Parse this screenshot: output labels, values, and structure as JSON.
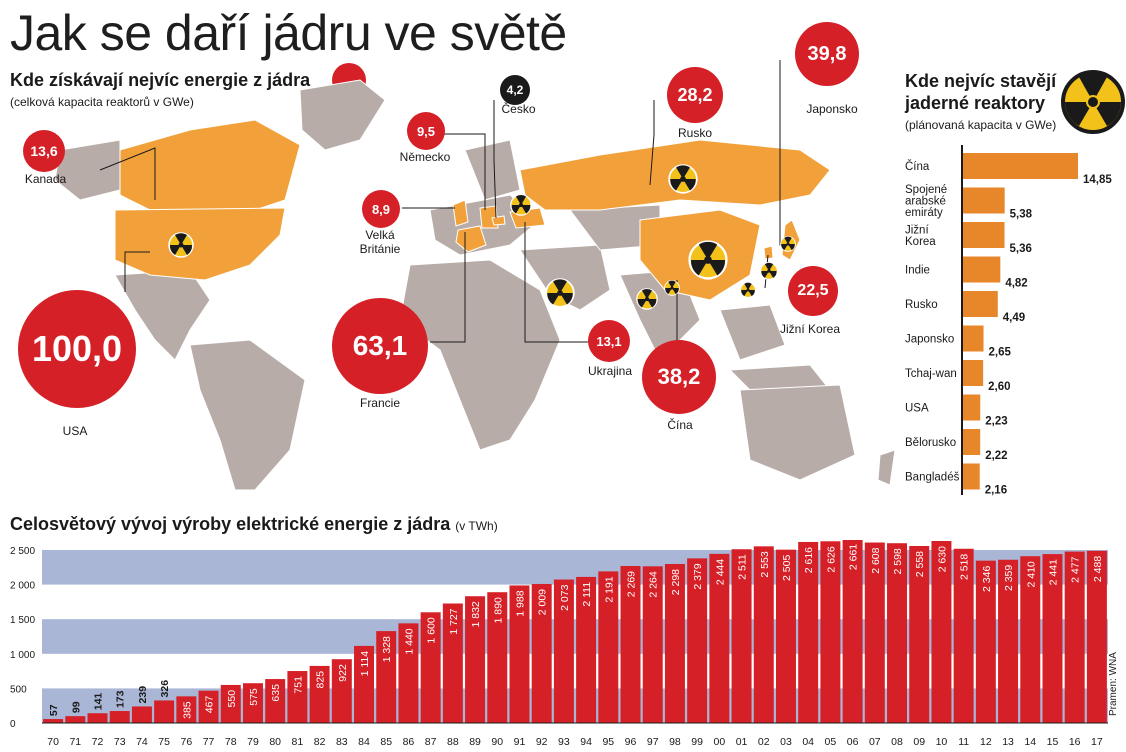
{
  "header": {
    "title": "Jak se daří jádru ve světě"
  },
  "map": {
    "title": "Kde získávají nejvíc energie z jádra",
    "subtitle": "(celková kapacita reaktorů v GWe)",
    "bubbles": [
      {
        "country": "USA",
        "value": "100,0"
      },
      {
        "country": "Francie",
        "value": "63,1"
      },
      {
        "country": "Japonsko",
        "value": "39,8"
      },
      {
        "country": "Čína",
        "value": "38,2"
      },
      {
        "country": "Rusko",
        "value": "28,2"
      },
      {
        "country": "Jižní Korea",
        "value": "22,5"
      },
      {
        "country": "Kanada",
        "value": "13,6"
      },
      {
        "country": "Ukrajina",
        "value": "13,1"
      },
      {
        "country": "Německo",
        "value": "9,5"
      },
      {
        "country": "Velká Británie",
        "value": "8,9"
      },
      {
        "country": "Česko",
        "value": "4,2"
      }
    ],
    "colors": {
      "bubble": "#d62027",
      "highlight_land": "#f2a13a",
      "land": "#b8aca8"
    }
  },
  "planned": {
    "title": "Kde nejvíc stavějí jaderné reaktory",
    "subtitle": "(plánovaná kapacita v GWe)"
  },
  "production": {
    "title": "Celosvětový vývoj výroby elektrické energie z jádra",
    "unit": "(v TWh)",
    "source": "Pramen: WNA"
  },
  "chart_data": [
    {
      "type": "bar",
      "orientation": "horizontal",
      "title": "Kde nejvíc stavějí jaderné reaktory",
      "subtitle": "(plánovaná kapacita v GWe)",
      "categories": [
        "Čína",
        "Spojené arabské emiráty",
        "Jižní Korea",
        "Indie",
        "Rusko",
        "Japonsko",
        "Tchaj-wan",
        "USA",
        "Bělorusko",
        "Bangladéš"
      ],
      "values": [
        14.85,
        5.38,
        5.36,
        4.82,
        4.49,
        2.65,
        2.6,
        2.23,
        2.22,
        2.16
      ],
      "value_labels": [
        "14,85",
        "5,38",
        "5,36",
        "4,82",
        "4,49",
        "2,65",
        "2,60",
        "2,23",
        "2,22",
        "2,16"
      ],
      "color": "#e8862a"
    },
    {
      "type": "bar",
      "title": "Celosvětový vývoj výroby elektrické energie z jádra",
      "unit": "(v TWh)",
      "categories": [
        "70",
        "71",
        "72",
        "73",
        "74",
        "75",
        "76",
        "77",
        "78",
        "79",
        "80",
        "81",
        "82",
        "83",
        "84",
        "85",
        "86",
        "87",
        "88",
        "89",
        "90",
        "91",
        "92",
        "93",
        "94",
        "95",
        "96",
        "97",
        "98",
        "99",
        "00",
        "01",
        "02",
        "03",
        "04",
        "05",
        "06",
        "07",
        "08",
        "09",
        "10",
        "11",
        "12",
        "13",
        "14",
        "15",
        "16",
        "17"
      ],
      "values": [
        57,
        99,
        141,
        173,
        239,
        326,
        385,
        467,
        550,
        575,
        635,
        751,
        825,
        922,
        1114,
        1328,
        1440,
        1600,
        1727,
        1832,
        1890,
        1988,
        2009,
        2073,
        2111,
        2191,
        2269,
        2264,
        2298,
        2379,
        2444,
        2511,
        2553,
        2505,
        2616,
        2626,
        2661,
        2608,
        2598,
        2558,
        2630,
        2518,
        2346,
        2359,
        2410,
        2441,
        2477,
        2488
      ],
      "value_labels": [
        "57",
        "99",
        "141",
        "173",
        "239",
        "326",
        "385",
        "467",
        "550",
        "575",
        "635",
        "751",
        "825",
        "922",
        "1 114",
        "1 328",
        "1 440",
        "1 600",
        "1 727",
        "1 832",
        "1 890",
        "1 988",
        "2 009",
        "2 073",
        "2 111",
        "2 191",
        "2 269",
        "2 264",
        "2 298",
        "2 379",
        "2 444",
        "2 511",
        "2 553",
        "2 505",
        "2 616",
        "2 626",
        "2 661",
        "2 608",
        "2 598",
        "2 558",
        "2 630",
        "2 518",
        "2 346",
        "2 359",
        "2 410",
        "2 441",
        "2 477",
        "2 488"
      ],
      "ylim": [
        0,
        2500
      ],
      "yticks": [
        "0",
        "500",
        "1 000",
        "1 500",
        "2 000",
        "2 500"
      ],
      "bar_color": "#d62027",
      "band_color": "#a9b6d6"
    }
  ]
}
